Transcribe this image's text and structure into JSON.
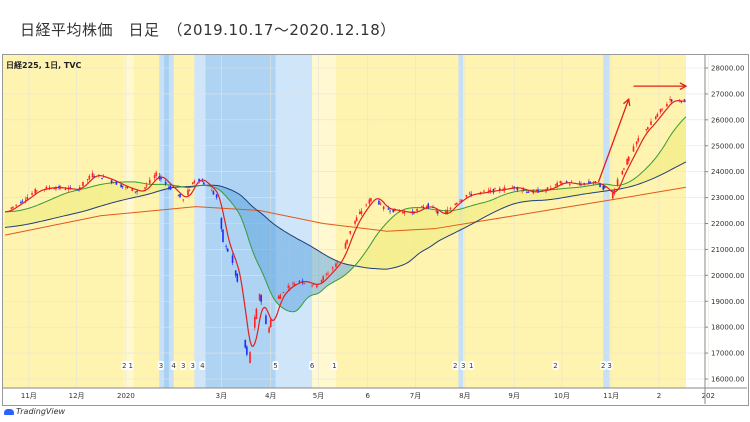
{
  "header": {
    "title": "日経平均株価　日足　（2019.10.17〜2020.12.18）"
  },
  "chart_data": {
    "type": "line",
    "title": "日経平均株価 日足 (2019.10.17〜2020.12.18)",
    "symbol_label": "日経225, 1日, TVC",
    "x_unit": "calendar days since 2019-10-17",
    "ylim": [
      15800,
      28300
    ],
    "y_ticks": [
      16000,
      17000,
      18000,
      19000,
      20000,
      21000,
      22000,
      23000,
      24000,
      25000,
      26000,
      27000,
      28000
    ],
    "y_tick_labels": [
      "16000.00",
      "17000.00",
      "18000.00",
      "19000.00",
      "20000.00",
      "21000.00",
      "22000.00",
      "23000.00",
      "24000.00",
      "25000.00",
      "26000.00",
      "27000.00",
      "28000.00"
    ],
    "x_ticks": [
      {
        "day": 15,
        "label": "11月"
      },
      {
        "day": 45,
        "label": "12月"
      },
      {
        "day": 76,
        "label": "2020"
      },
      {
        "day": 136,
        "label": "3月"
      },
      {
        "day": 167,
        "label": "4月"
      },
      {
        "day": 197,
        "label": "5月"
      },
      {
        "day": 228,
        "label": "6"
      },
      {
        "day": 258,
        "label": "7月"
      },
      {
        "day": 289,
        "label": "8月"
      },
      {
        "day": 320,
        "label": "9月"
      },
      {
        "day": 350,
        "label": "10月"
      },
      {
        "day": 381,
        "label": "11月"
      },
      {
        "day": 411,
        "label": "2"
      },
      {
        "day": 442,
        "label": "202"
      }
    ],
    "close": [
      [
        0,
        22450
      ],
      [
        10,
        22850
      ],
      [
        20,
        23300
      ],
      [
        30,
        23400
      ],
      [
        45,
        23300
      ],
      [
        55,
        23900
      ],
      [
        65,
        23700
      ],
      [
        75,
        23400
      ],
      [
        85,
        23200
      ],
      [
        95,
        23900
      ],
      [
        105,
        23300
      ],
      [
        112,
        22900
      ],
      [
        120,
        23800
      ],
      [
        128,
        23400
      ],
      [
        133,
        23000
      ],
      [
        137,
        21300
      ],
      [
        142,
        20700
      ],
      [
        147,
        19500
      ],
      [
        150,
        17500
      ],
      [
        153,
        16600
      ],
      [
        156,
        18000
      ],
      [
        160,
        19300
      ],
      [
        165,
        17800
      ],
      [
        170,
        19000
      ],
      [
        176,
        19500
      ],
      [
        185,
        19800
      ],
      [
        195,
        19600
      ],
      [
        203,
        20100
      ],
      [
        210,
        20600
      ],
      [
        218,
        21900
      ],
      [
        225,
        22600
      ],
      [
        232,
        23100
      ],
      [
        237,
        22600
      ],
      [
        245,
        22500
      ],
      [
        255,
        22400
      ],
      [
        265,
        22700
      ],
      [
        275,
        22300
      ],
      [
        283,
        22800
      ],
      [
        290,
        23100
      ],
      [
        300,
        23200
      ],
      [
        310,
        23300
      ],
      [
        320,
        23400
      ],
      [
        330,
        23200
      ],
      [
        340,
        23300
      ],
      [
        350,
        23600
      ],
      [
        360,
        23500
      ],
      [
        370,
        23600
      ],
      [
        378,
        23300
      ],
      [
        381,
        23000
      ],
      [
        385,
        23700
      ],
      [
        390,
        24300
      ],
      [
        395,
        24900
      ],
      [
        400,
        25500
      ],
      [
        405,
        25800
      ],
      [
        410,
        26200
      ],
      [
        414,
        26500
      ],
      [
        418,
        26800
      ],
      [
        422,
        26700
      ],
      [
        428,
        26750
      ]
    ],
    "series": [
      {
        "name": "MA short",
        "color": "#e02020"
      },
      {
        "name": "MA25",
        "color": "#3a9a3a"
      },
      {
        "name": "MA75",
        "color": "#1f3f7a"
      },
      {
        "name": "MA200",
        "color": "#e05a1a",
        "values": [
          [
            0,
            21550
          ],
          [
            60,
            22300
          ],
          [
            120,
            22650
          ],
          [
            160,
            22500
          ],
          [
            200,
            22000
          ],
          [
            240,
            21700
          ],
          [
            270,
            21800
          ],
          [
            300,
            22100
          ],
          [
            340,
            22500
          ],
          [
            380,
            22900
          ],
          [
            428,
            23400
          ]
        ]
      }
    ],
    "bands": [
      {
        "from": 75,
        "to": 81,
        "color": "#fff8d0"
      },
      {
        "from": 97,
        "to": 106,
        "color": "#c6e0f7"
      },
      {
        "from": 100,
        "to": 103,
        "color": "#a9d0f2"
      },
      {
        "from": 119,
        "to": 193,
        "color": "#cfe5fa"
      },
      {
        "from": 126,
        "to": 170,
        "color": "#aed3f3"
      },
      {
        "from": 193,
        "to": 208,
        "color": "#fff8d0"
      },
      {
        "from": 285,
        "to": 288,
        "color": "#c6e0f7"
      },
      {
        "from": 376,
        "to": 380,
        "color": "#c6e0f7"
      }
    ],
    "event_labels": [
      {
        "day": 75,
        "label": "2"
      },
      {
        "day": 79,
        "label": "1"
      },
      {
        "day": 98,
        "label": "3"
      },
      {
        "day": 106,
        "label": "4"
      },
      {
        "day": 112,
        "label": "3"
      },
      {
        "day": 118,
        "label": "3"
      },
      {
        "day": 124,
        "label": "4"
      },
      {
        "day": 170,
        "label": "5"
      },
      {
        "day": 193,
        "label": "6"
      },
      {
        "day": 207,
        "label": "1"
      },
      {
        "day": 283,
        "label": "2"
      },
      {
        "day": 288,
        "label": "3"
      },
      {
        "day": 293,
        "label": "1"
      },
      {
        "day": 346,
        "label": "2"
      },
      {
        "day": 376,
        "label": "2"
      },
      {
        "day": 380,
        "label": "3"
      }
    ],
    "annotations": [
      {
        "type": "arrow",
        "color": "#e02020",
        "from": [
          373,
          23600
        ],
        "to": [
          392,
          26800
        ]
      },
      {
        "type": "arrow",
        "color": "#e02020",
        "from": [
          395,
          27300
        ],
        "to": [
          428,
          27300
        ]
      }
    ]
  },
  "footer": {
    "brand": "TradingView"
  }
}
